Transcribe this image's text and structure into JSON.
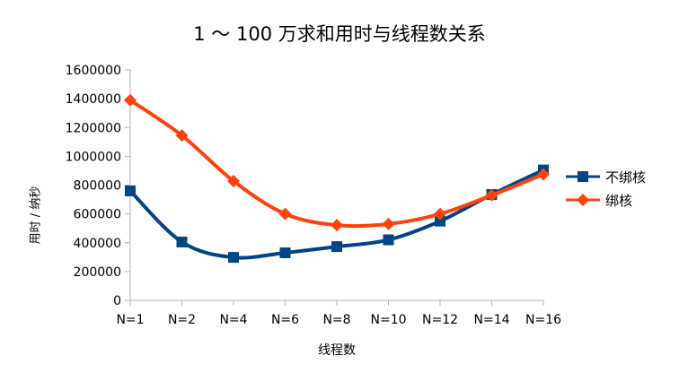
{
  "chart_data": {
    "type": "line",
    "title": "1 ～ 100 万求和用时与线程数关系",
    "xlabel": "线程数",
    "ylabel": "用时 / 纳秒",
    "categories": [
      "N=1",
      "N=2",
      "N=4",
      "N=6",
      "N=8",
      "N=10",
      "N=12",
      "N=14",
      "N=16"
    ],
    "ylim": [
      0,
      1600000
    ],
    "yticks": [
      0,
      200000,
      400000,
      600000,
      800000,
      1000000,
      1200000,
      1400000,
      1600000
    ],
    "legend_position": "right",
    "grid": false,
    "smooth": true,
    "series": [
      {
        "name": "不绑核",
        "color": "#004586",
        "marker": "square",
        "values": [
          760000,
          405000,
          298000,
          330000,
          373000,
          420000,
          550000,
          735000,
          905000
        ]
      },
      {
        "name": "绑核",
        "color": "#ff420e",
        "marker": "diamond",
        "values": [
          1390000,
          1145000,
          828000,
          600000,
          522000,
          530000,
          600000,
          730000,
          875000
        ]
      }
    ]
  }
}
